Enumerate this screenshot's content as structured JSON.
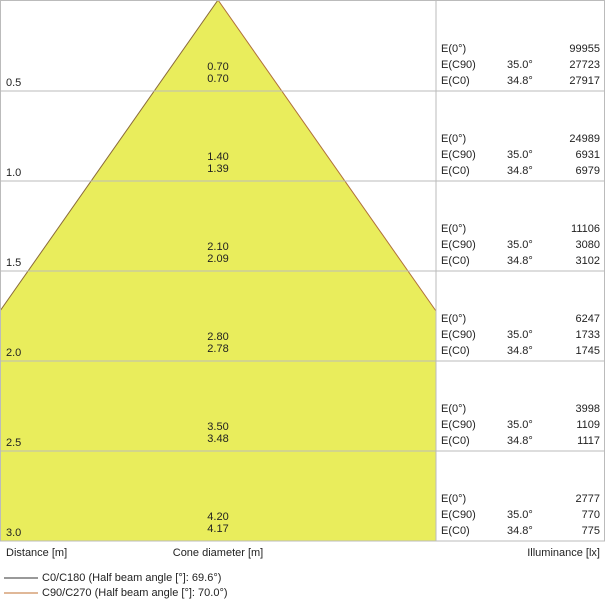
{
  "row_labels": {
    "e0": "E(0°)",
    "e_c90": "E(C90)",
    "e_c0": "E(C0)"
  },
  "rows": [
    {
      "distance": "0.5",
      "diameter_c90": "0.70",
      "diameter_c0": "0.70",
      "e0": "99955",
      "angle_c90": "35.0°",
      "e_c90": "27723",
      "angle_c0": "34.8°",
      "e_c0": "27917"
    },
    {
      "distance": "1.0",
      "diameter_c90": "1.40",
      "diameter_c0": "1.39",
      "e0": "24989",
      "angle_c90": "35.0°",
      "e_c90": "6931",
      "angle_c0": "34.8°",
      "e_c0": "6979"
    },
    {
      "distance": "1.5",
      "diameter_c90": "2.10",
      "diameter_c0": "2.09",
      "e0": "11106",
      "angle_c90": "35.0°",
      "e_c90": "3080",
      "angle_c0": "34.8°",
      "e_c0": "3102"
    },
    {
      "distance": "2.0",
      "diameter_c90": "2.80",
      "diameter_c0": "2.78",
      "e0": "6247",
      "angle_c90": "35.0°",
      "e_c90": "1733",
      "angle_c0": "34.8°",
      "e_c0": "1745"
    },
    {
      "distance": "2.5",
      "diameter_c90": "3.50",
      "diameter_c0": "3.48",
      "e0": "3998",
      "angle_c90": "35.0°",
      "e_c90": "1109",
      "angle_c0": "34.8°",
      "e_c0": "1117"
    },
    {
      "distance": "3.0",
      "diameter_c90": "4.20",
      "diameter_c0": "4.17",
      "e0": "2777",
      "angle_c90": "35.0°",
      "e_c90": "770",
      "angle_c0": "34.8°",
      "e_c0": "775"
    }
  ],
  "footer": {
    "distance": "Distance [m]",
    "diameter": "Cone diameter [m]",
    "illuminance": "Illuminance [lx]"
  },
  "legend": [
    "C0/C180 (Half beam angle [°]: 69.6°)",
    "C90/C270 (Half beam angle [°]: 70.0°)"
  ]
}
